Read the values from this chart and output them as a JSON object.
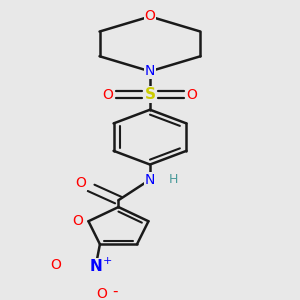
{
  "bg_color": "#e8e8e8",
  "bond_color": "#1a1a1a",
  "colors": {
    "O": "#ff0000",
    "N": "#0000ff",
    "S": "#cccc00",
    "H": "#4a9a9a",
    "C": "#1a1a1a"
  },
  "figsize": [
    3.0,
    3.0
  ],
  "dpi": 100
}
